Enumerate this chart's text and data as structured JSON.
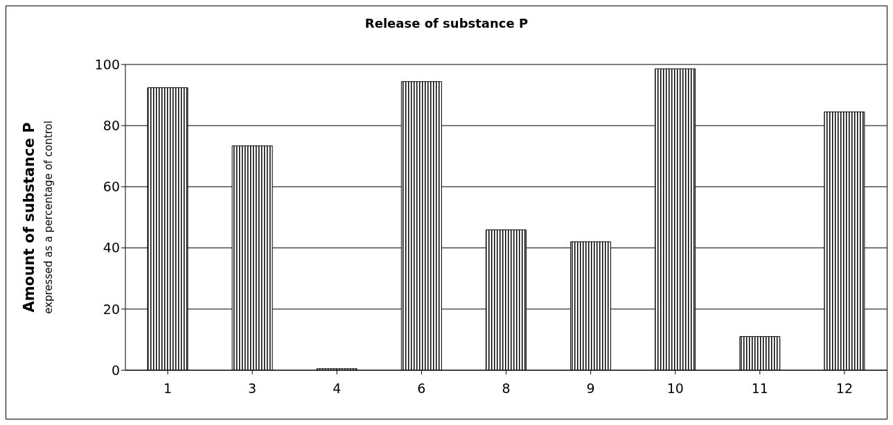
{
  "chart_data": {
    "type": "bar",
    "title": "Release of substance P",
    "ylabel": "Amount of substance P\nexpressed as a percentage of control",
    "categories": [
      "1",
      "3",
      "4",
      "6",
      "8",
      "9",
      "10",
      "11",
      "12"
    ],
    "values": [
      92.4,
      73.4,
      0.5,
      94.4,
      45.9,
      42.0,
      98.6,
      11.0,
      84.5
    ],
    "color": "#000000",
    "ylim": [
      0,
      100
    ],
    "yticks": [
      0,
      20,
      40,
      60,
      80,
      100
    ],
    "grid": "y"
  }
}
